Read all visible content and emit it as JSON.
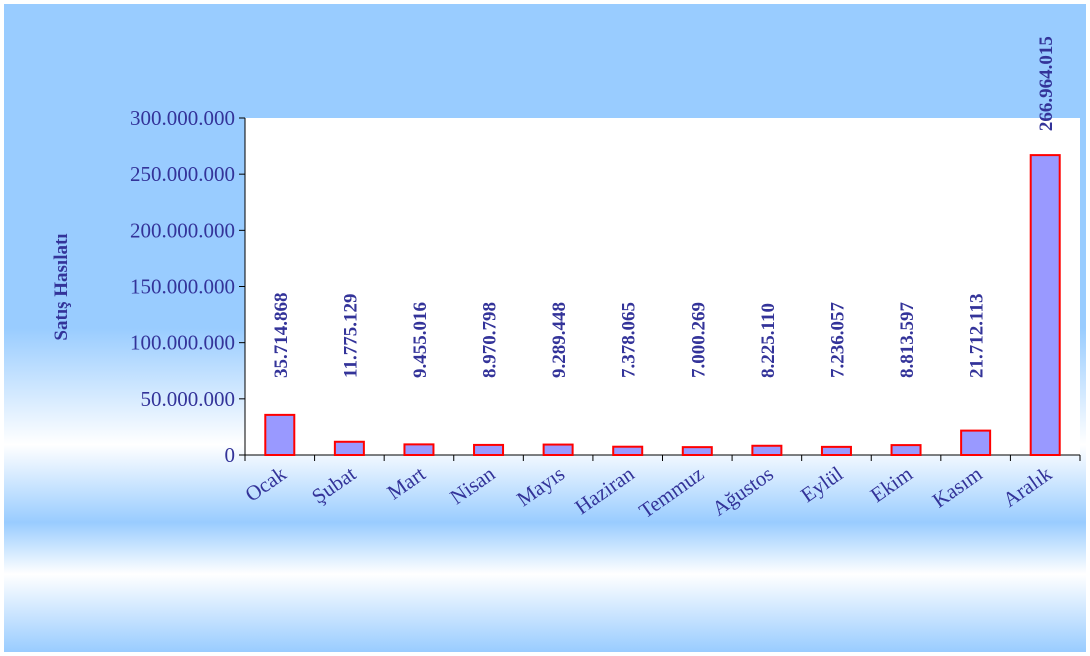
{
  "colors": {
    "bar_fill": "#9999FF",
    "bar_stroke": "#FF0000",
    "text": "#333399",
    "plot_bg": "#FFFFFF",
    "grad_top": "#99CCFF",
    "grad_light": "#FFFFFF"
  },
  "chart_data": {
    "type": "bar",
    "title": "",
    "xlabel": "",
    "ylabel": "Satış Hasılatı",
    "ylim": [
      0,
      300000000
    ],
    "yticks": [
      0,
      50000000,
      100000000,
      150000000,
      200000000,
      250000000,
      300000000
    ],
    "ytick_labels": [
      "0",
      "50.000.000",
      "100.000.000",
      "150.000.000",
      "200.000.000",
      "250.000.000",
      "300.000.000"
    ],
    "grid": false,
    "legend": "none",
    "categories": [
      "Ocak",
      "Şubat",
      "Mart",
      "Nisan",
      "Mayıs",
      "Haziran",
      "Temmuz",
      "Ağustos",
      "Eylül",
      "Ekim",
      "Kasım",
      "Aralık"
    ],
    "values": [
      35714868,
      11775129,
      9455016,
      8970798,
      9289448,
      7378065,
      7000269,
      8225110,
      7236057,
      8813597,
      21712113,
      266964015
    ],
    "data_labels": [
      "35.714.868",
      "11.775.129",
      "9.455.016",
      "8.970.798",
      "9.289.448",
      "7.378.065",
      "7.000.269",
      "8.225.110",
      "7.236.057",
      "8.813.597",
      "21.712.113",
      "266.964.015"
    ]
  }
}
